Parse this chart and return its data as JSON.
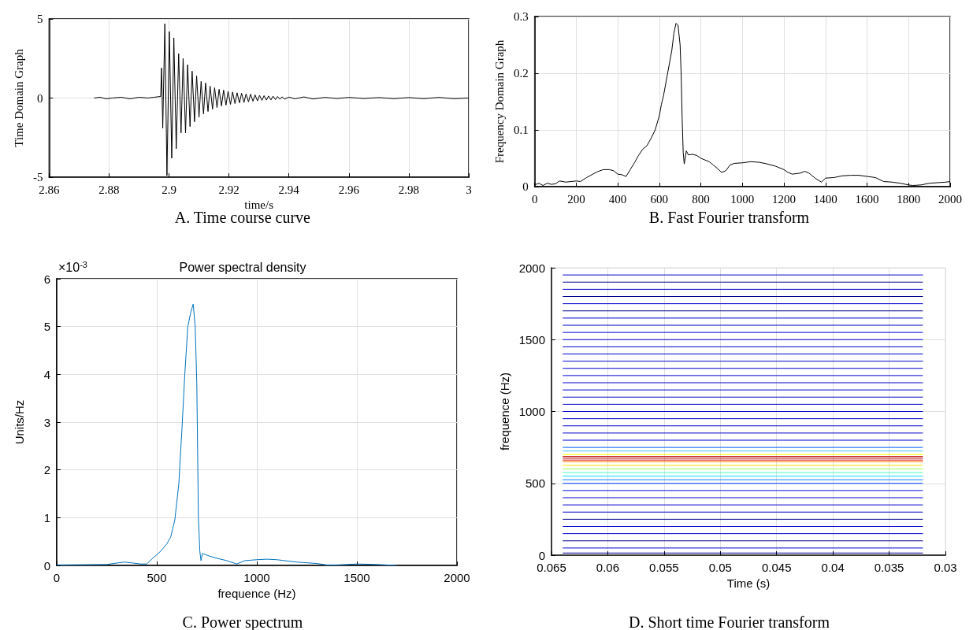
{
  "chart_data": [
    {
      "type": "line",
      "xlabel": "time/s",
      "ylabel": "Time Domain Graph",
      "annotations": [
        "A. Time course curve"
      ],
      "xlim": [
        2.86,
        3
      ],
      "xticks": [
        2.86,
        2.88,
        2.9,
        2.92,
        2.94,
        2.96,
        2.98,
        3
      ],
      "ylim": [
        -5,
        5
      ],
      "yticks": [
        -5,
        0,
        5
      ],
      "grid": true,
      "series": [
        {
          "color": "#000000",
          "x": [
            2.875,
            2.877,
            2.879,
            2.881,
            2.884,
            2.887,
            2.89,
            2.893,
            2.895,
            2.8972,
            2.8975,
            2.8979,
            2.8986,
            2.8993,
            2.9001,
            2.9009,
            2.9016,
            2.9024,
            2.9032,
            2.904,
            2.9047,
            2.9055,
            2.9062,
            2.907,
            2.9077,
            2.9085,
            2.9092,
            2.91,
            2.9107,
            2.9115,
            2.9122,
            2.913,
            2.9137,
            2.9145,
            2.9152,
            2.916,
            2.9167,
            2.9175,
            2.9182,
            2.919,
            2.9197,
            2.9205,
            2.9212,
            2.922,
            2.9227,
            2.9235,
            2.9242,
            2.925,
            2.9257,
            2.9265,
            2.9272,
            2.928,
            2.9287,
            2.9295,
            2.9302,
            2.931,
            2.9317,
            2.9325,
            2.9332,
            2.934,
            2.9347,
            2.9355,
            2.9362,
            2.937,
            2.9377,
            2.9385,
            2.94,
            2.942,
            2.945,
            2.948,
            2.952,
            2.956,
            2.96,
            2.965,
            2.97,
            2.975,
            2.98,
            2.985,
            2.99,
            2.995,
            3
          ],
          "values": [
            0,
            0.05,
            -0.05,
            0,
            0.05,
            -0.05,
            0.05,
            0,
            0.05,
            0.1,
            1.9,
            -1.9,
            4.7,
            -4.9,
            4.2,
            -3.8,
            3.8,
            -3.2,
            2.8,
            -2.2,
            2.5,
            -2.2,
            2.1,
            -1.8,
            1.7,
            -1.5,
            1.4,
            -1.2,
            1.05,
            -1,
            0.95,
            -0.85,
            0.75,
            -0.7,
            0.65,
            -0.6,
            0.55,
            -0.5,
            0.5,
            -0.45,
            0.42,
            -0.4,
            0.38,
            -0.35,
            0.33,
            -0.3,
            0.3,
            -0.28,
            0.26,
            -0.24,
            0.24,
            -0.2,
            0.2,
            -0.18,
            0.17,
            -0.15,
            0.15,
            -0.13,
            0.13,
            -0.12,
            0.12,
            -0.1,
            0.1,
            -0.08,
            0.08,
            -0.07,
            0.06,
            -0.05,
            0.07,
            -0.06,
            0.04,
            -0.03,
            0.04,
            -0.03,
            0.03,
            -0.04,
            0.03,
            -0.04,
            0.04,
            -0.04,
            0
          ]
        }
      ]
    },
    {
      "type": "line",
      "ylabel": "Frequency Domain Graph",
      "annotations": [
        "B. Fast Fourier transform"
      ],
      "xlim": [
        0,
        2000
      ],
      "xticks": [
        0,
        200,
        400,
        600,
        800,
        1000,
        1200,
        1400,
        1600,
        1800,
        2000
      ],
      "ylim": [
        0,
        0.3
      ],
      "yticks": [
        0,
        0.1,
        0.2,
        0.3
      ],
      "grid": true,
      "series": [
        {
          "color": "#000000",
          "x": [
            0,
            20,
            40,
            60,
            80,
            100,
            120,
            150,
            200,
            220,
            250,
            280,
            300,
            330,
            360,
            380,
            400,
            420,
            440,
            460,
            480,
            500,
            520,
            540,
            560,
            580,
            600,
            610,
            620,
            640,
            660,
            670,
            680,
            690,
            700,
            705,
            710,
            715,
            720,
            730,
            740,
            760,
            780,
            800,
            820,
            840,
            860,
            880,
            900,
            920,
            940,
            960,
            1000,
            1040,
            1080,
            1120,
            1160,
            1200,
            1220,
            1240,
            1280,
            1300,
            1320,
            1350,
            1380,
            1400,
            1440,
            1480,
            1520,
            1560,
            1600,
            1640,
            1680,
            1720,
            1760,
            1800,
            1820,
            1860,
            1900,
            1940,
            1980,
            2000
          ],
          "values": [
            0.003,
            0.006,
            0.002,
            0.006,
            0.004,
            0.005,
            0.01,
            0.008,
            0.01,
            0.009,
            0.016,
            0.022,
            0.026,
            0.03,
            0.03,
            0.028,
            0.022,
            0.021,
            0.018,
            0.03,
            0.042,
            0.055,
            0.066,
            0.072,
            0.085,
            0.1,
            0.125,
            0.145,
            0.16,
            0.2,
            0.24,
            0.27,
            0.288,
            0.285,
            0.25,
            0.2,
            0.12,
            0.06,
            0.04,
            0.063,
            0.056,
            0.057,
            0.055,
            0.05,
            0.047,
            0.044,
            0.038,
            0.032,
            0.025,
            0.028,
            0.038,
            0.041,
            0.042,
            0.044,
            0.043,
            0.04,
            0.036,
            0.03,
            0.025,
            0.022,
            0.024,
            0.027,
            0.024,
            0.015,
            0.008,
            0.015,
            0.016,
            0.019,
            0.02,
            0.02,
            0.018,
            0.016,
            0.009,
            0.008,
            0.006,
            0.003,
            0.002,
            0.003,
            0.006,
            0.007,
            0.008,
            0.009
          ]
        }
      ]
    },
    {
      "type": "line",
      "title": "Power spectral density",
      "xlabel": "frequence (Hz)",
      "ylabel": "Units/Hz",
      "annotations": [
        "×10$^{-3}$",
        "C. Power spectrum"
      ],
      "xlim": [
        0,
        2000
      ],
      "xticks": [
        0,
        500,
        1000,
        1500,
        2000
      ],
      "ylim": [
        0,
        6
      ],
      "yticks": [
        0,
        1,
        2,
        3,
        4,
        5,
        6
      ],
      "grid": true,
      "series": [
        {
          "color": "#0072bd",
          "x": [
            0,
            250,
            300,
            340,
            380,
            420,
            450,
            480,
            520,
            550,
            570,
            590,
            610,
            625,
            640,
            655,
            670,
            682,
            692,
            700,
            708,
            715,
            721,
            728,
            760,
            800,
            850,
            900,
            940,
            1000,
            1050,
            1100,
            1200,
            1300,
            1350,
            1400,
            1500,
            1600,
            1700
          ],
          "values": [
            0.01,
            0.02,
            0.05,
            0.07,
            0.05,
            0.03,
            0.03,
            0.15,
            0.3,
            0.45,
            0.6,
            0.95,
            1.7,
            2.8,
            4,
            5,
            5.3,
            5.47,
            5,
            3.8,
            1,
            0.3,
            0.1,
            0.25,
            0.2,
            0.15,
            0.1,
            0.03,
            0.1,
            0.12,
            0.13,
            0.12,
            0.07,
            0.04,
            0.01,
            0.01,
            0.03,
            0.02,
            0
          ]
        }
      ]
    },
    {
      "type": "line",
      "xlabel": "Time (s)",
      "ylabel": "frequence (Hz)",
      "annotations": [
        "D. Short time Fourier transform"
      ],
      "xlim": [
        0.065,
        0.03
      ],
      "xticks": [
        0.065,
        0.06,
        0.055,
        0.05,
        0.045,
        0.04,
        0.035,
        0.03
      ],
      "ylim": [
        0,
        2000
      ],
      "yticks": [
        0,
        500,
        1000,
        1500,
        2000
      ],
      "grid": true,
      "x": [
        0.064,
        0.032
      ],
      "series": [
        {
          "color": "#00008b",
          "values": [
            15,
            15
          ]
        },
        {
          "color": "#0000cd",
          "values": [
            50,
            50
          ]
        },
        {
          "color": "#00008b",
          "values": [
            100,
            100
          ]
        },
        {
          "color": "#0000cd",
          "values": [
            150,
            150
          ]
        },
        {
          "color": "#0000cd",
          "values": [
            200,
            200
          ]
        },
        {
          "color": "#00008b",
          "values": [
            250,
            250
          ]
        },
        {
          "color": "#0000cd",
          "values": [
            300,
            300
          ]
        },
        {
          "color": "#0000cd",
          "values": [
            350,
            350
          ]
        },
        {
          "color": "#0000cd",
          "values": [
            400,
            400
          ]
        },
        {
          "color": "#0010e0",
          "values": [
            450,
            450
          ]
        },
        {
          "color": "#0040ff",
          "values": [
            500,
            500
          ]
        },
        {
          "color": "#0080ff",
          "values": [
            525,
            525
          ]
        },
        {
          "color": "#00e0ff",
          "values": [
            550,
            550
          ]
        },
        {
          "color": "#40ffc0",
          "values": [
            575,
            575
          ]
        },
        {
          "color": "#a0ff60",
          "values": [
            600,
            600
          ]
        },
        {
          "color": "#ffe000",
          "values": [
            625,
            625
          ]
        },
        {
          "color": "#ff8000",
          "values": [
            650,
            650
          ]
        },
        {
          "color": "#e00000",
          "values": [
            662,
            662
          ]
        },
        {
          "color": "#a00000",
          "values": [
            675,
            675
          ]
        },
        {
          "color": "#c00000",
          "values": [
            687,
            687
          ]
        },
        {
          "color": "#ffff00",
          "values": [
            700,
            700
          ]
        },
        {
          "color": "#40c0ff",
          "values": [
            725,
            725
          ]
        },
        {
          "color": "#0060ff",
          "values": [
            750,
            750
          ]
        },
        {
          "color": "#0000cd",
          "values": [
            800,
            800
          ]
        },
        {
          "color": "#0000cd",
          "values": [
            850,
            850
          ]
        },
        {
          "color": "#0000cd",
          "values": [
            900,
            900
          ]
        },
        {
          "color": "#0000cd",
          "values": [
            950,
            950
          ]
        },
        {
          "color": "#0000cd",
          "values": [
            1000,
            1000
          ]
        },
        {
          "color": "#0000cd",
          "values": [
            1050,
            1050
          ]
        },
        {
          "color": "#0000cd",
          "values": [
            1100,
            1100
          ]
        },
        {
          "color": "#0000cd",
          "values": [
            1150,
            1150
          ]
        },
        {
          "color": "#0000cd",
          "values": [
            1200,
            1200
          ]
        },
        {
          "color": "#0000cd",
          "values": [
            1250,
            1250
          ]
        },
        {
          "color": "#0000cd",
          "values": [
            1300,
            1300
          ]
        },
        {
          "color": "#0000cd",
          "values": [
            1350,
            1350
          ]
        },
        {
          "color": "#0000cd",
          "values": [
            1400,
            1400
          ]
        },
        {
          "color": "#0000cd",
          "values": [
            1450,
            1450
          ]
        },
        {
          "color": "#0000cd",
          "values": [
            1500,
            1500
          ]
        },
        {
          "color": "#0000cd",
          "values": [
            1550,
            1550
          ]
        },
        {
          "color": "#0000cd",
          "values": [
            1600,
            1600
          ]
        },
        {
          "color": "#0000cd",
          "values": [
            1650,
            1650
          ]
        },
        {
          "color": "#00008b",
          "values": [
            1700,
            1700
          ]
        },
        {
          "color": "#0000cd",
          "values": [
            1750,
            1750
          ]
        },
        {
          "color": "#00008b",
          "values": [
            1800,
            1800
          ]
        },
        {
          "color": "#0000cd",
          "values": [
            1850,
            1850
          ]
        },
        {
          "color": "#00008b",
          "values": [
            1900,
            1900
          ]
        },
        {
          "color": "#0000cd",
          "values": [
            1950,
            1950
          ]
        }
      ]
    }
  ]
}
